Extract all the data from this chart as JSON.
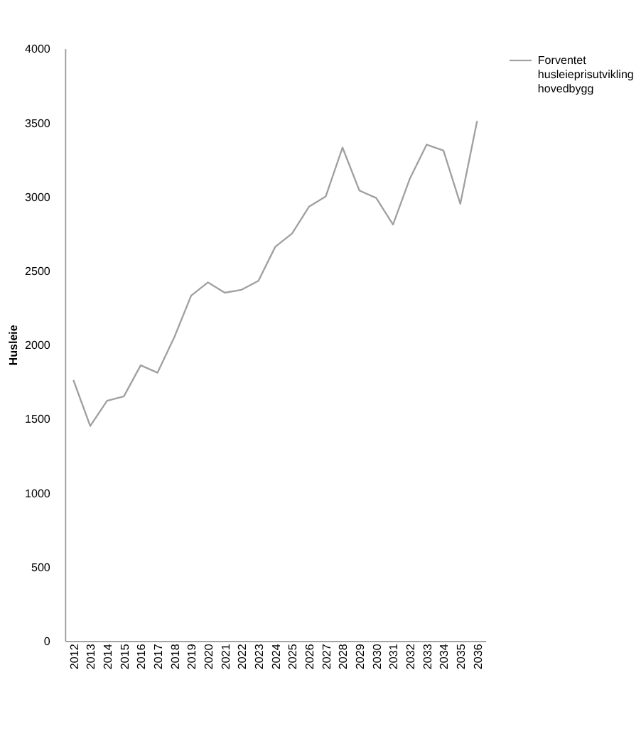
{
  "chart_data": {
    "type": "line",
    "ylabel": "Husleie",
    "categories": [
      "2012",
      "2013",
      "2014",
      "2015",
      "2016",
      "2017",
      "2018",
      "2019",
      "2020",
      "2021",
      "2022",
      "2023",
      "2024",
      "2025",
      "2026",
      "2027",
      "2028",
      "2029",
      "2030",
      "2031",
      "2032",
      "2033",
      "2034",
      "2035",
      "2036"
    ],
    "series": [
      {
        "name": "Forventet husleieprisutvikling hovedbygg",
        "color": "#a0a0a0",
        "values": [
          1760,
          1450,
          1620,
          1650,
          1860,
          1810,
          2050,
          2330,
          2420,
          2350,
          2370,
          2430,
          2660,
          2750,
          2930,
          3000,
          3330,
          3040,
          2990,
          2810,
          3120,
          3350,
          3310,
          2950,
          3510
        ]
      }
    ],
    "ylim": [
      0,
      4000
    ],
    "yticks": [
      0,
      500,
      1000,
      1500,
      2000,
      2500,
      3000,
      3500,
      4000
    ],
    "grid": false,
    "legend": "right",
    "line_style": "solid",
    "marker": "none"
  }
}
